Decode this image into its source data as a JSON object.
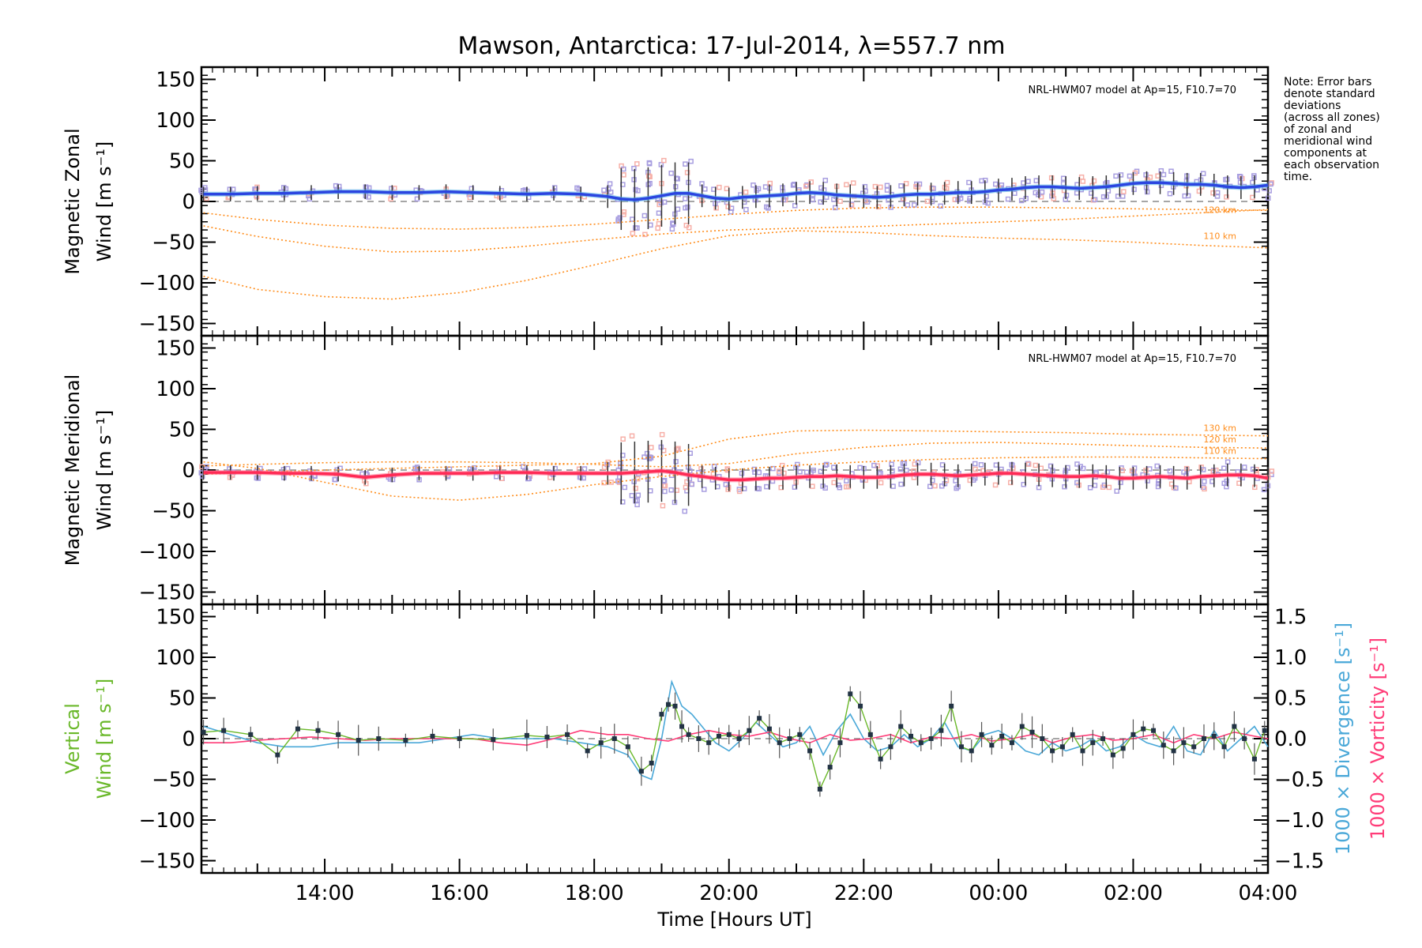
{
  "title": "Mawson, Antarctica: 17-Jul-2014, λ=557.7 nm",
  "note_lines": [
    "Note: Error bars",
    "denote standard",
    "deviations",
    "(across all zones)",
    "of zonal and",
    "meridional wind",
    "components at",
    "each observation",
    "time."
  ],
  "colors": {
    "zonal_mean": "#2b45e0",
    "zonal_fit": "#4fb3e6",
    "meridional_mean": "#ff2a55",
    "meridional_fit": "#ff6a8a",
    "model": "#ff8c1a",
    "zone_points": "#a89ee0",
    "zone_points_alt": "#f7b0a8",
    "vertical": "#6ab82a",
    "divergence": "#4aa8d8",
    "vorticity": "#ff3c78",
    "errorbar": "#333333"
  },
  "chart_data": [
    {
      "type": "line",
      "panel": "zonal",
      "ylabel_line1": "Magnetic Zonal",
      "ylabel_line2": "Wind [m s⁻¹]",
      "xlim": [
        12.17,
        28.0
      ],
      "ylim": [
        -165,
        165
      ],
      "yticks": [
        150,
        100,
        50,
        0,
        -50,
        -100,
        -150
      ],
      "yticklabels": [
        "150",
        "100",
        "50",
        "0",
        "−50",
        "−100",
        "−150"
      ],
      "model_label": "NRL-HWM07 model at Ap=15, F10.7=70",
      "model_alt_labels": [
        "120 km",
        "110 km"
      ],
      "series": [
        {
          "role": "mean",
          "x": [
            12.2,
            12.6,
            13.0,
            13.4,
            13.8,
            14.2,
            14.6,
            15.0,
            15.4,
            15.8,
            16.2,
            16.6,
            17.0,
            17.4,
            17.8,
            18.2,
            18.4,
            18.6,
            18.8,
            19.0,
            19.2,
            19.4,
            19.6,
            19.8,
            20.0,
            20.2,
            20.4,
            20.6,
            20.8,
            21.0,
            21.2,
            21.4,
            21.6,
            21.8,
            22.0,
            22.2,
            22.4,
            22.6,
            22.8,
            23.0,
            23.2,
            23.4,
            23.6,
            23.8,
            24.0,
            24.2,
            24.4,
            24.6,
            24.8,
            25.0,
            25.2,
            25.4,
            25.6,
            25.8,
            26.0,
            26.2,
            26.4,
            26.6,
            26.8,
            27.0,
            27.2,
            27.4,
            27.6,
            27.8,
            28.0
          ],
          "y": [
            9,
            9,
            10,
            10,
            11,
            12,
            12,
            11,
            11,
            12,
            11,
            10,
            9,
            10,
            9,
            6,
            3,
            2,
            4,
            7,
            10,
            10,
            7,
            4,
            3,
            5,
            6,
            7,
            8,
            10,
            11,
            10,
            8,
            7,
            6,
            5,
            6,
            8,
            9,
            9,
            10,
            11,
            11,
            12,
            14,
            15,
            17,
            18,
            18,
            17,
            16,
            17,
            18,
            20,
            22,
            23,
            23,
            22,
            21,
            21,
            20,
            18,
            17,
            18,
            20
          ]
        },
        {
          "role": "model",
          "x": [
            12.2,
            13.0,
            14.0,
            15.0,
            16.0,
            17.0,
            18.0,
            19.0,
            20.0,
            21.0,
            22.0,
            23.0,
            24.0,
            25.0,
            26.0,
            27.0,
            28.0
          ],
          "y": [
            -14,
            -22,
            -29,
            -33,
            -34,
            -32,
            -28,
            -22,
            -16,
            -11,
            -8,
            -7,
            -7,
            -8,
            -9,
            -10,
            -11
          ]
        },
        {
          "role": "model",
          "x": [
            12.2,
            13.0,
            14.0,
            15.0,
            16.0,
            17.0,
            18.0,
            19.0,
            20.0,
            21.0,
            22.0,
            23.0,
            24.0,
            25.0,
            26.0,
            27.0,
            28.0
          ],
          "y": [
            -30,
            -43,
            -55,
            -62,
            -61,
            -55,
            -47,
            -40,
            -35,
            -33,
            -31,
            -28,
            -25,
            -22,
            -18,
            -14,
            -10
          ]
        },
        {
          "role": "model",
          "x": [
            12.2,
            13.0,
            14.0,
            15.0,
            16.0,
            17.0,
            18.0,
            19.0,
            20.0,
            21.0,
            22.0,
            23.0,
            24.0,
            25.0,
            26.0,
            27.0,
            28.0
          ],
          "y": [
            -92,
            -108,
            -117,
            -120,
            -112,
            -97,
            -78,
            -58,
            -42,
            -36,
            -38,
            -42,
            -45,
            -47,
            -50,
            -54,
            -57
          ]
        }
      ]
    },
    {
      "type": "line",
      "panel": "meridional",
      "ylabel_line1": "Magnetic Meridional",
      "ylabel_line2": "Wind [m s⁻¹]",
      "xlim": [
        12.17,
        28.0
      ],
      "ylim": [
        -165,
        165
      ],
      "yticks": [
        150,
        100,
        50,
        0,
        -50,
        -100,
        -150
      ],
      "yticklabels": [
        "150",
        "100",
        "50",
        "0",
        "−50",
        "−100",
        "−150"
      ],
      "model_label": "NRL-HWM07 model at Ap=15, F10.7=70",
      "model_alt_labels": [
        "130 km",
        "120 km",
        "110 km"
      ],
      "series": [
        {
          "role": "mean",
          "x": [
            12.2,
            12.6,
            13.0,
            13.4,
            13.8,
            14.2,
            14.6,
            15.0,
            15.4,
            15.8,
            16.2,
            16.6,
            17.0,
            17.4,
            17.8,
            18.2,
            18.4,
            18.6,
            18.8,
            19.0,
            19.2,
            19.4,
            19.6,
            19.8,
            20.0,
            20.2,
            20.4,
            20.6,
            20.8,
            21.0,
            21.2,
            21.4,
            21.6,
            21.8,
            22.0,
            22.2,
            22.4,
            22.6,
            22.8,
            23.0,
            23.2,
            23.4,
            23.6,
            23.8,
            24.0,
            24.2,
            24.4,
            24.6,
            24.8,
            25.0,
            25.2,
            25.4,
            25.6,
            25.8,
            26.0,
            26.2,
            26.4,
            26.6,
            26.8,
            27.0,
            27.2,
            27.4,
            27.6,
            27.8,
            28.0
          ],
          "y": [
            -3,
            -3,
            -3,
            -4,
            -4,
            -5,
            -9,
            -6,
            -4,
            -4,
            -4,
            -3,
            -3,
            -4,
            -4,
            -4,
            -4,
            -3,
            -2,
            -1,
            -3,
            -6,
            -8,
            -10,
            -12,
            -12,
            -11,
            -10,
            -10,
            -9,
            -8,
            -8,
            -7,
            -8,
            -9,
            -9,
            -8,
            -6,
            -5,
            -5,
            -6,
            -7,
            -6,
            -5,
            -4,
            -4,
            -5,
            -6,
            -7,
            -8,
            -8,
            -7,
            -8,
            -10,
            -10,
            -9,
            -8,
            -9,
            -10,
            -8,
            -7,
            -6,
            -6,
            -7,
            -10
          ]
        },
        {
          "role": "model",
          "x": [
            12.2,
            13.0,
            14.0,
            15.0,
            16.0,
            17.0,
            18.0,
            19.0,
            20.0,
            21.0,
            22.0,
            23.0,
            24.0,
            25.0,
            26.0,
            27.0,
            28.0
          ],
          "y": [
            -5,
            -3,
            0,
            2,
            4,
            6,
            8,
            17,
            38,
            48,
            49,
            48,
            47,
            46,
            44,
            43,
            42
          ]
        },
        {
          "role": "model",
          "x": [
            12.2,
            13.0,
            14.0,
            15.0,
            16.0,
            17.0,
            18.0,
            19.0,
            20.0,
            21.0,
            22.0,
            23.0,
            24.0,
            25.0,
            26.0,
            27.0,
            28.0
          ],
          "y": [
            5,
            7,
            9,
            10,
            10,
            9,
            7,
            4,
            8,
            20,
            28,
            33,
            34,
            32,
            30,
            28,
            27
          ]
        },
        {
          "role": "model",
          "x": [
            12.2,
            13.0,
            14.0,
            15.0,
            16.0,
            17.0,
            18.0,
            19.0,
            20.0,
            21.0,
            22.0,
            23.0,
            24.0,
            25.0,
            26.0,
            27.0,
            28.0
          ],
          "y": [
            10,
            2,
            -15,
            -32,
            -37,
            -30,
            -18,
            -8,
            0,
            6,
            10,
            13,
            15,
            16,
            16,
            15,
            14
          ]
        }
      ]
    },
    {
      "type": "line",
      "panel": "vertical",
      "ylabel_line1": "Vertical",
      "ylabel_line2": "Wind [m s⁻¹]",
      "y2label_div": "1000 × Divergence [s⁻¹]",
      "y2label_vor": "1000 × Vorticity [s⁻¹]",
      "xlim": [
        12.17,
        28.0
      ],
      "xlabel": "Time [Hours UT]",
      "xticks": [
        14,
        16,
        18,
        20,
        22,
        24,
        26,
        28
      ],
      "xticklabels": [
        "14:00",
        "16:00",
        "18:00",
        "20:00",
        "22:00",
        "00:00",
        "02:00",
        "04:00"
      ],
      "ylim": [
        -165,
        165
      ],
      "yticks": [
        150,
        100,
        50,
        0,
        -50,
        -100,
        -150
      ],
      "yticklabels": [
        "150",
        "100",
        "50",
        "0",
        "−50",
        "−100",
        "−150"
      ],
      "y2lim": [
        -1.65,
        1.65
      ],
      "y2ticks": [
        1.5,
        1.0,
        0.5,
        0.0,
        -0.5,
        -1.0,
        -1.5
      ],
      "y2ticklabels": [
        "1.5",
        "1.0",
        "0.5",
        "0.0",
        "−0.5",
        "−1.0",
        "−1.5"
      ],
      "series": [
        {
          "name": "Vertical",
          "x": [
            12.2,
            12.5,
            12.9,
            13.3,
            13.6,
            13.9,
            14.2,
            14.5,
            14.8,
            15.2,
            15.6,
            16.0,
            16.5,
            17.0,
            17.3,
            17.6,
            17.9,
            18.1,
            18.3,
            18.5,
            18.7,
            18.85,
            19.0,
            19.1,
            19.2,
            19.3,
            19.4,
            19.55,
            19.7,
            19.85,
            20.0,
            20.15,
            20.3,
            20.45,
            20.6,
            20.75,
            20.9,
            21.05,
            21.2,
            21.35,
            21.5,
            21.65,
            21.8,
            21.95,
            22.1,
            22.25,
            22.4,
            22.55,
            22.7,
            22.85,
            23.0,
            23.15,
            23.3,
            23.45,
            23.6,
            23.75,
            23.9,
            24.05,
            24.2,
            24.35,
            24.5,
            24.65,
            24.8,
            24.95,
            25.1,
            25.25,
            25.4,
            25.55,
            25.7,
            25.85,
            26.0,
            26.15,
            26.3,
            26.45,
            26.6,
            26.75,
            26.9,
            27.05,
            27.2,
            27.35,
            27.5,
            27.65,
            27.8,
            27.95
          ],
          "y": [
            8,
            10,
            5,
            -20,
            12,
            10,
            5,
            -2,
            0,
            -2,
            3,
            0,
            -1,
            4,
            2,
            5,
            -15,
            -5,
            0,
            -10,
            -40,
            -30,
            30,
            42,
            40,
            15,
            5,
            0,
            -5,
            3,
            5,
            0,
            10,
            25,
            12,
            -5,
            0,
            5,
            -15,
            -62,
            -35,
            -5,
            55,
            40,
            5,
            -25,
            -10,
            15,
            3,
            -5,
            0,
            10,
            40,
            -10,
            -15,
            5,
            -8,
            3,
            -5,
            15,
            8,
            0,
            -15,
            -10,
            5,
            -15,
            -5,
            0,
            -20,
            -12,
            5,
            12,
            10,
            -8,
            -15,
            -5,
            -10,
            0,
            3,
            -10,
            15,
            0,
            -25,
            10
          ]
        },
        {
          "name": "1000 × Divergence",
          "x": [
            12.2,
            12.6,
            13.0,
            13.4,
            13.8,
            14.2,
            14.6,
            15.0,
            15.4,
            15.8,
            16.2,
            16.6,
            17.0,
            17.4,
            17.8,
            18.2,
            18.5,
            18.7,
            18.85,
            19.0,
            19.15,
            19.3,
            19.45,
            19.6,
            19.8,
            20.0,
            20.2,
            20.4,
            20.6,
            20.8,
            21.0,
            21.2,
            21.4,
            21.6,
            21.8,
            22.0,
            22.2,
            22.4,
            22.6,
            22.8,
            23.0,
            23.2,
            23.4,
            23.6,
            23.8,
            24.0,
            24.2,
            24.4,
            24.6,
            24.8,
            25.0,
            25.2,
            25.4,
            25.6,
            25.8,
            26.0,
            26.2,
            26.4,
            26.6,
            26.8,
            27.0,
            27.2,
            27.4,
            27.6,
            27.8,
            28.0
          ],
          "y": [
            0.15,
            0.05,
            -0.05,
            -0.1,
            -0.1,
            -0.05,
            -0.05,
            -0.05,
            -0.05,
            0.0,
            0.05,
            0.0,
            0.0,
            0.0,
            -0.05,
            -0.1,
            -0.2,
            -0.45,
            -0.5,
            0.0,
            0.7,
            0.4,
            0.3,
            0.15,
            -0.05,
            -0.15,
            0.0,
            0.2,
            0.05,
            -0.1,
            -0.05,
            0.15,
            -0.2,
            0.1,
            0.3,
            0.0,
            -0.15,
            -0.1,
            0.05,
            -0.1,
            0.0,
            0.2,
            -0.1,
            -0.15,
            0.05,
            0.1,
            0.0,
            -0.15,
            -0.2,
            -0.05,
            -0.15,
            -0.1,
            0.0,
            -0.15,
            -0.1,
            0.05,
            -0.05,
            -0.1,
            0.15,
            -0.15,
            -0.2,
            0.1,
            -0.15,
            0.0,
            0.15,
            -0.1
          ]
        },
        {
          "name": "1000 × Vorticity",
          "x": [
            12.2,
            12.6,
            13.0,
            13.4,
            13.8,
            14.2,
            14.6,
            15.0,
            15.4,
            15.8,
            16.2,
            16.6,
            17.0,
            17.4,
            17.8,
            18.2,
            18.5,
            18.8,
            19.1,
            19.4,
            19.7,
            20.0,
            20.3,
            20.6,
            20.9,
            21.2,
            21.5,
            21.8,
            22.1,
            22.4,
            22.7,
            23.0,
            23.3,
            23.6,
            23.9,
            24.2,
            24.5,
            24.8,
            25.1,
            25.4,
            25.7,
            26.0,
            26.3,
            26.6,
            26.9,
            27.2,
            27.5,
            27.8,
            28.0
          ],
          "y": [
            -0.05,
            -0.05,
            -0.02,
            0.0,
            0.02,
            0.0,
            -0.02,
            0.0,
            0.0,
            0.0,
            0.0,
            -0.05,
            -0.08,
            0.0,
            0.1,
            0.05,
            0.05,
            0.0,
            -0.03,
            0.05,
            0.1,
            0.05,
            0.03,
            0.08,
            0.0,
            -0.05,
            0.05,
            -0.02,
            0.0,
            0.05,
            -0.05,
            0.02,
            0.0,
            0.05,
            -0.03,
            0.0,
            0.05,
            -0.05,
            0.02,
            0.05,
            -0.02,
            0.0,
            0.05,
            -0.05,
            0.05,
            0.0,
            0.08,
            0.03,
            0.0
          ]
        }
      ]
    }
  ]
}
